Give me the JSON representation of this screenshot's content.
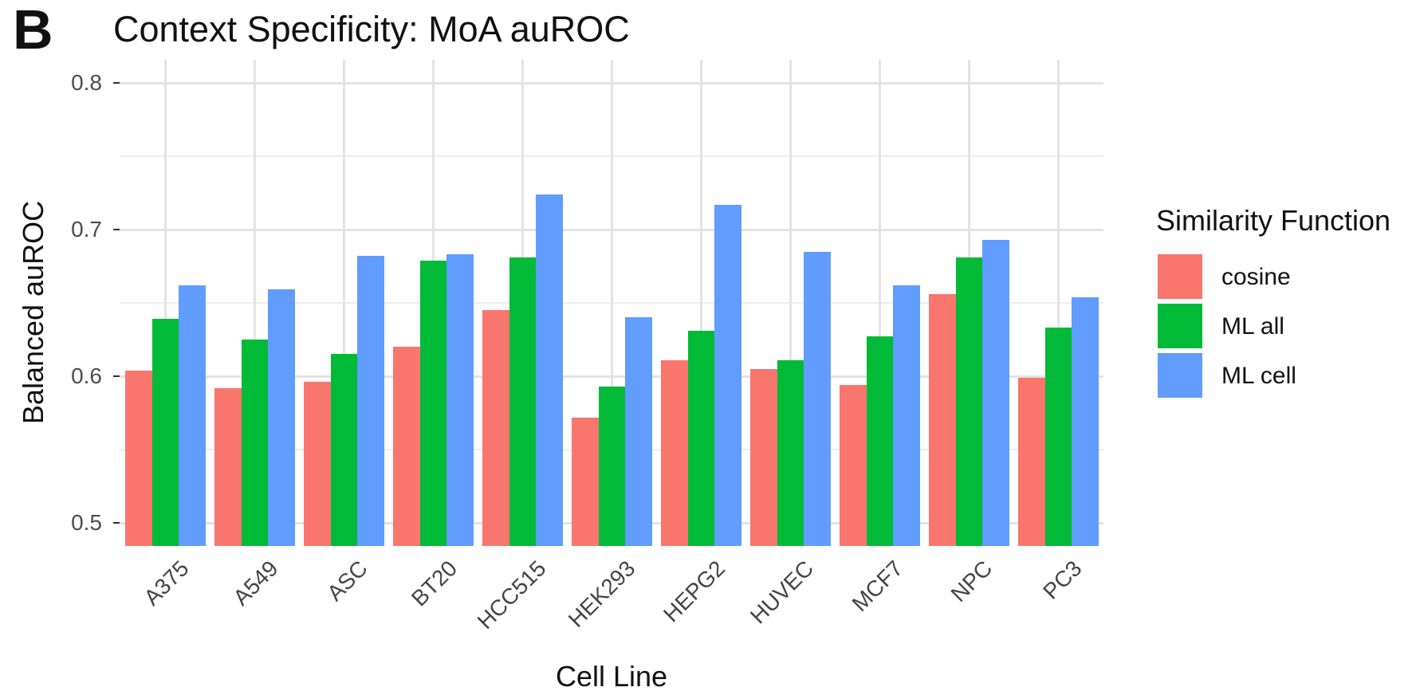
{
  "panel_label": "B",
  "title": "Context Specificity: MoA auROC",
  "chart_data": {
    "type": "bar",
    "title": "Context Specificity: MoA auROC",
    "xlabel": "Cell Line",
    "ylabel": "Balanced auROC",
    "ylim": [
      0.484,
      0.816
    ],
    "grid": "horizontal major+minor, vertical major per category; light gray on white",
    "legend_position": "right",
    "y_axis": {
      "major": [
        0.8,
        0.7,
        0.6,
        0.5
      ],
      "major_labels": [
        "0.8",
        "0.7",
        "0.6",
        "0.5"
      ],
      "minor": [
        0.75,
        0.65,
        0.55
      ]
    },
    "categories": [
      "A375",
      "A549",
      "ASC",
      "BT20",
      "HCC515",
      "HEK293",
      "HEPG2",
      "HUVEC",
      "MCF7",
      "NPC",
      "PC3"
    ],
    "series": [
      {
        "name": "cosine",
        "color": "#F8766D",
        "values": [
          0.604,
          0.592,
          0.596,
          0.62,
          0.645,
          0.572,
          0.611,
          0.605,
          0.594,
          0.656,
          0.599
        ]
      },
      {
        "name": "ML all",
        "color": "#00BA38",
        "values": [
          0.639,
          0.625,
          0.615,
          0.679,
          0.681,
          0.593,
          0.631,
          0.611,
          0.627,
          0.681,
          0.633
        ]
      },
      {
        "name": "ML cell",
        "color": "#619CFF",
        "values": [
          0.662,
          0.659,
          0.682,
          0.683,
          0.724,
          0.64,
          0.717,
          0.685,
          0.662,
          0.693,
          0.654
        ]
      }
    ]
  },
  "legend": {
    "title": "Similarity Function",
    "items": [
      {
        "label": "cosine",
        "color": "#F8766D"
      },
      {
        "label": "ML all",
        "color": "#00BA38"
      },
      {
        "label": "ML cell",
        "color": "#619CFF"
      }
    ]
  }
}
